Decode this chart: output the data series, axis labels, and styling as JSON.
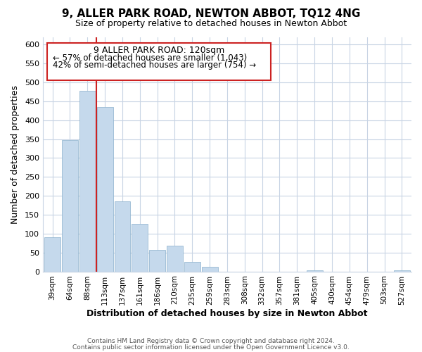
{
  "title": "9, ALLER PARK ROAD, NEWTON ABBOT, TQ12 4NG",
  "subtitle": "Size of property relative to detached houses in Newton Abbot",
  "xlabel": "Distribution of detached houses by size in Newton Abbot",
  "ylabel": "Number of detached properties",
  "bar_labels": [
    "39sqm",
    "64sqm",
    "88sqm",
    "113sqm",
    "137sqm",
    "161sqm",
    "186sqm",
    "210sqm",
    "235sqm",
    "259sqm",
    "283sqm",
    "308sqm",
    "332sqm",
    "357sqm",
    "381sqm",
    "405sqm",
    "430sqm",
    "454sqm",
    "479sqm",
    "503sqm",
    "527sqm"
  ],
  "bar_values": [
    90,
    347,
    477,
    435,
    185,
    126,
    57,
    68,
    25,
    13,
    0,
    0,
    0,
    0,
    0,
    3,
    0,
    0,
    0,
    0,
    3
  ],
  "bar_color": "#c5d9ec",
  "bar_edge_color": "#8ab0cc",
  "property_line_label": "9 ALLER PARK ROAD: 120sqm",
  "annotation_line1": "← 57% of detached houses are smaller (1,043)",
  "annotation_line2": "42% of semi-detached houses are larger (754) →",
  "annotation_box_color": "#ffffff",
  "annotation_box_edge": "#cc2222",
  "vline_color": "#cc2222",
  "vline_x": 2.5,
  "ylim": [
    0,
    620
  ],
  "yticks": [
    0,
    50,
    100,
    150,
    200,
    250,
    300,
    350,
    400,
    450,
    500,
    550,
    600
  ],
  "footer1": "Contains HM Land Registry data © Crown copyright and database right 2024.",
  "footer2": "Contains public sector information licensed under the Open Government Licence v3.0.",
  "background_color": "#ffffff",
  "grid_color": "#c8d4e4",
  "title_fontsize": 11,
  "subtitle_fontsize": 9,
  "xlabel_fontsize": 9,
  "ylabel_fontsize": 9,
  "tick_fontsize": 8,
  "annotation_title_fontsize": 9,
  "annotation_text_fontsize": 8.5
}
